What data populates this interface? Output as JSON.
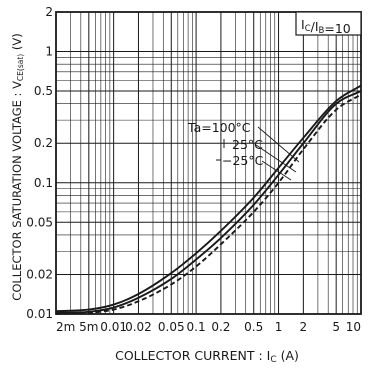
{
  "chart_data": {
    "type": "line",
    "xscale": "log",
    "yscale": "log",
    "xlim": [
      0.002,
      10
    ],
    "ylim": [
      0.01,
      2
    ],
    "grid": true,
    "xlabel": "COLLECTOR  CURRENT : I",
    "xlabel_sub": "C",
    "xlabel_unit": "  (A)",
    "ylabel": "COLLECTOR SATURATION VOLTAGE : V",
    "ylabel_sub": "CE(sat)",
    "ylabel_unit": "  (V)",
    "condition": {
      "prefix": "I",
      "sub1": "C",
      "slash": "/I",
      "sub2": "B",
      "suffix": "=10"
    },
    "xticks": [
      {
        "value": 0.002,
        "label": "2m"
      },
      {
        "value": 0.005,
        "label": "5m"
      },
      {
        "value": 0.01,
        "label": "0.01"
      },
      {
        "value": 0.02,
        "label": "0.02"
      },
      {
        "value": 0.05,
        "label": "0.05"
      },
      {
        "value": 0.1,
        "label": "0.1"
      },
      {
        "value": 0.2,
        "label": "0.2"
      },
      {
        "value": 0.5,
        "label": "0.5"
      },
      {
        "value": 1,
        "label": "1"
      },
      {
        "value": 2,
        "label": "2"
      },
      {
        "value": 5,
        "label": "5"
      },
      {
        "value": 10,
        "label": "10"
      }
    ],
    "yticks": [
      {
        "value": 0.01,
        "label": "0.01"
      },
      {
        "value": 0.02,
        "label": "0.02"
      },
      {
        "value": 0.05,
        "label": "0.05"
      },
      {
        "value": 0.1,
        "label": "0.1"
      },
      {
        "value": 0.2,
        "label": "0.2"
      },
      {
        "value": 0.5,
        "label": "0.5"
      },
      {
        "value": 1,
        "label": "1"
      },
      {
        "value": 2,
        "label": "2"
      }
    ],
    "series": [
      {
        "name": "Ta=100°C",
        "color": "#1a1a1a",
        "dash": "",
        "x": [
          0.002,
          0.005,
          0.01,
          0.02,
          0.05,
          0.1,
          0.2,
          0.5,
          1,
          2,
          5,
          10
        ],
        "y": [
          0.0105,
          0.0108,
          0.0118,
          0.0142,
          0.0205,
          0.029,
          0.043,
          0.077,
          0.13,
          0.22,
          0.42,
          0.55
        ]
      },
      {
        "name": "25°C",
        "color": "#1a1a1a",
        "dash": "",
        "x": [
          0.002,
          0.005,
          0.01,
          0.02,
          0.05,
          0.1,
          0.2,
          0.5,
          1,
          2,
          5,
          10
        ],
        "y": [
          0.0102,
          0.0104,
          0.0112,
          0.0133,
          0.0185,
          0.026,
          0.038,
          0.068,
          0.115,
          0.2,
          0.4,
          0.5
        ]
      },
      {
        "name": "−25°C",
        "color": "#1a1a1a",
        "dash": "5,3",
        "x": [
          0.002,
          0.005,
          0.01,
          0.02,
          0.05,
          0.1,
          0.2,
          0.5,
          1,
          2,
          5,
          10
        ],
        "y": [
          0.01,
          0.0102,
          0.0108,
          0.0125,
          0.0168,
          0.023,
          0.034,
          0.06,
          0.1,
          0.18,
          0.36,
          0.47
        ]
      }
    ],
    "annotations": [
      {
        "text": "Ta=100°C"
      },
      {
        "text": "25°C"
      },
      {
        "text": "−25°C"
      }
    ]
  }
}
